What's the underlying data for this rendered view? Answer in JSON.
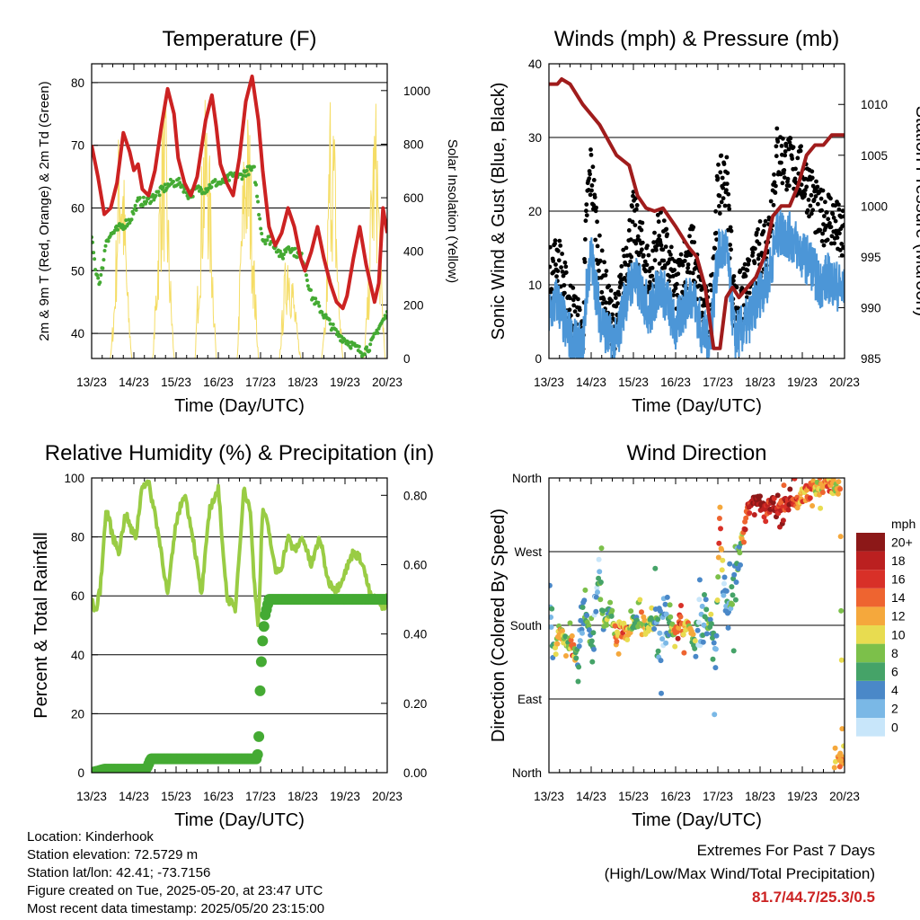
{
  "station": {
    "location": "Location: Kinderhook",
    "elevation": "Station elevation: 72.5729 m",
    "latlon": "Station lat/lon: 42.41; -73.7156",
    "created": "Figure created on Tue, 2025-05-20, at 23:47 UTC",
    "latest": "Most recent data timestamp: 2025/05/20 23:15:00"
  },
  "extremes": {
    "title": "Extremes For Past 7 Days",
    "subtitle": "(High/Low/Max Wind/Total Precipitation)",
    "values": "81.7/44.7/25.3/0.5"
  },
  "colors": {
    "temp": "#cc2222",
    "dewpoint": "#44aa33",
    "solar": "#f5dd66",
    "gust": "#000000",
    "wind": "#4c96d7",
    "pressure": "#a01c1c",
    "rh": "#99cc44",
    "precip": "#44aa33"
  },
  "chart_data": [
    {
      "type": "line",
      "title": "Temperature (F)",
      "xlabel": "Time (Day/UTC)",
      "ylabel": "2m & 9m T (Red, Orange) & 2m Td (Green)",
      "ylabel_right": "Solar Insolation (Yellow)",
      "x_ticks": [
        "13/23",
        "14/23",
        "15/23",
        "16/23",
        "17/23",
        "18/23",
        "19/23",
        "20/23"
      ],
      "xlim": [
        0,
        7
      ],
      "ylim": [
        36,
        83
      ],
      "ylim_right": [
        0,
        1100
      ],
      "y_ticks": [
        40,
        50,
        60,
        70,
        80
      ],
      "y_ticks_right": [
        0,
        200,
        400,
        600,
        800,
        1000
      ],
      "grid": "horizontal",
      "series": [
        {
          "name": "2m T",
          "axis": "left",
          "x": [
            0,
            0.15,
            0.3,
            0.45,
            0.6,
            0.75,
            0.9,
            1.0,
            1.1,
            1.2,
            1.35,
            1.5,
            1.65,
            1.8,
            1.95,
            2.05,
            2.2,
            2.35,
            2.5,
            2.7,
            2.85,
            2.95,
            3.05,
            3.2,
            3.35,
            3.5,
            3.65,
            3.8,
            3.95,
            4.05,
            4.2,
            4.35,
            4.5,
            4.65,
            4.8,
            4.95,
            5.05,
            5.2,
            5.35,
            5.5,
            5.65,
            5.8,
            5.95,
            6.05,
            6.2,
            6.35,
            6.5,
            6.6,
            6.7,
            6.8,
            6.9,
            7.0
          ],
          "values": [
            70,
            65,
            59,
            60,
            64,
            72,
            69,
            66,
            67,
            63,
            62,
            66,
            73,
            79,
            75,
            68,
            64,
            62,
            65,
            74,
            78,
            73,
            67,
            64,
            62,
            68,
            77,
            81,
            74,
            66,
            57,
            54,
            56,
            60,
            57,
            52,
            50,
            53,
            57,
            52,
            48,
            45,
            44,
            46,
            52,
            57,
            51,
            48,
            45,
            48,
            60,
            56
          ]
        },
        {
          "name": "2m Td",
          "axis": "left",
          "x": [
            0,
            0.1,
            0.2,
            0.35,
            0.5,
            0.7,
            0.9,
            1.1,
            1.3,
            1.5,
            1.7,
            1.9,
            2.1,
            2.3,
            2.5,
            2.7,
            2.9,
            3.1,
            3.3,
            3.5,
            3.7,
            3.85,
            3.95,
            4.05,
            4.2,
            4.35,
            4.5,
            4.65,
            4.8,
            5.0,
            5.2,
            5.4,
            5.6,
            5.8,
            6.0,
            6.2,
            6.4,
            6.6,
            6.8,
            7.0
          ],
          "values": [
            55,
            50,
            48,
            55,
            56,
            57,
            58,
            61,
            61,
            62,
            63,
            64,
            64,
            62,
            63,
            63,
            64,
            64,
            65,
            65,
            66,
            66,
            60,
            55,
            55,
            54,
            52,
            54,
            53,
            52,
            46,
            44,
            42,
            40,
            39,
            38,
            37,
            38,
            41,
            43
          ]
        },
        {
          "name": "Solar Insolation",
          "axis": "right",
          "x": [
            0,
            0.45,
            0.55,
            0.65,
            0.75,
            0.85,
            0.95,
            1.45,
            1.55,
            1.65,
            1.75,
            1.85,
            1.95,
            2.45,
            2.55,
            2.65,
            2.75,
            2.85,
            2.95,
            3.45,
            3.55,
            3.65,
            3.75,
            3.85,
            3.95,
            4.45,
            4.55,
            4.65,
            4.75,
            4.85,
            4.95,
            5.45,
            5.55,
            5.65,
            5.75,
            5.85,
            5.95,
            6.45,
            6.55,
            6.65,
            6.75,
            6.85,
            6.95
          ],
          "values": [
            0,
            0,
            300,
            950,
            800,
            300,
            0,
            0,
            400,
            900,
            1000,
            400,
            0,
            0,
            500,
            950,
            1000,
            500,
            0,
            0,
            600,
            1000,
            900,
            400,
            0,
            0,
            300,
            500,
            350,
            150,
            0,
            0,
            200,
            1080,
            900,
            300,
            0,
            0,
            300,
            900,
            1000,
            400,
            0
          ]
        }
      ]
    },
    {
      "type": "scatter",
      "title": "Winds (mph) & Pressure (mb)",
      "xlabel": "Time (Day/UTC)",
      "ylabel": "Sonic Wind & Gust (Blue, Black)",
      "ylabel_right": "Station Pressure (Maroon)",
      "x_ticks": [
        "13/23",
        "14/23",
        "15/23",
        "16/23",
        "17/23",
        "18/23",
        "19/23",
        "20/23"
      ],
      "xlim": [
        0,
        7
      ],
      "ylim": [
        0,
        40
      ],
      "ylim_right": [
        985,
        1014
      ],
      "y_ticks": [
        0,
        10,
        20,
        30,
        40
      ],
      "y_ticks_right": [
        985,
        990,
        995,
        1000,
        1005,
        1010
      ],
      "grid": "horizontal",
      "series": [
        {
          "name": "Gust",
          "axis": "left",
          "x": [
            0,
            0.2,
            0.4,
            0.6,
            0.8,
            0.9,
            1.0,
            1.2,
            1.4,
            1.6,
            1.8,
            2.0,
            2.2,
            2.4,
            2.6,
            2.8,
            3.0,
            3.2,
            3.4,
            3.6,
            3.8,
            4.0,
            4.2,
            4.4,
            4.6,
            4.8,
            5.0,
            5.2,
            5.4,
            5.6,
            5.8,
            6.0,
            6.2,
            6.4,
            6.6,
            6.8,
            7.0
          ],
          "values": [
            10,
            13,
            8,
            5,
            2,
            20,
            25,
            12,
            6,
            4,
            12,
            18,
            14,
            10,
            16,
            13,
            8,
            12,
            14,
            7,
            4,
            22,
            24,
            6,
            8,
            10,
            14,
            16,
            27,
            26,
            25,
            24,
            22,
            18,
            19,
            17,
            15
          ]
        },
        {
          "name": "Wind",
          "axis": "left",
          "x": [
            0,
            0.2,
            0.4,
            0.6,
            0.8,
            0.9,
            1.0,
            1.2,
            1.4,
            1.6,
            1.8,
            2.0,
            2.2,
            2.4,
            2.6,
            2.8,
            3.0,
            3.2,
            3.4,
            3.6,
            3.8,
            4.0,
            4.2,
            4.4,
            4.6,
            4.8,
            5.0,
            5.2,
            5.4,
            5.6,
            5.8,
            6.0,
            6.2,
            6.4,
            6.6,
            6.8,
            7.0
          ],
          "values": [
            6,
            8,
            4,
            2,
            1,
            10,
            14,
            6,
            3,
            2,
            8,
            11,
            9,
            6,
            10,
            8,
            4,
            7,
            9,
            4,
            2,
            14,
            15,
            3,
            4,
            6,
            9,
            11,
            17,
            17,
            16,
            14,
            13,
            10,
            11,
            10,
            9
          ]
        },
        {
          "name": "Station Pressure",
          "axis": "right",
          "x": [
            0,
            0.2,
            0.3,
            0.5,
            0.8,
            1.2,
            1.6,
            1.9,
            2.1,
            2.3,
            2.5,
            2.7,
            3.0,
            3.3,
            3.5,
            3.7,
            3.9,
            4.05,
            4.2,
            4.35,
            4.5,
            4.7,
            4.9,
            5.1,
            5.3,
            5.5,
            5.7,
            5.9,
            6.1,
            6.3,
            6.5,
            6.7,
            6.9,
            7.0
          ],
          "values": [
            1012,
            1012,
            1012.5,
            1012,
            1010,
            1008,
            1005,
            1004,
            1001,
            999.8,
            999.5,
            999.8,
            998,
            996,
            995,
            992,
            986,
            986,
            991,
            992,
            991,
            992,
            993,
            995,
            999,
            1000,
            1000,
            1002,
            1005,
            1006,
            1006,
            1007,
            1007,
            1007
          ]
        }
      ]
    },
    {
      "type": "line",
      "title": "Relative Humidity (%) & Precipitation (in)",
      "xlabel": "Time (Day/UTC)",
      "ylabel": "Percent & Total Rainfall",
      "x_ticks": [
        "13/23",
        "14/23",
        "15/23",
        "16/23",
        "17/23",
        "18/23",
        "19/23",
        "20/23"
      ],
      "xlim": [
        0,
        7
      ],
      "ylim": [
        0,
        100
      ],
      "ylim_right": [
        0,
        0.85
      ],
      "y_ticks": [
        0,
        20,
        40,
        60,
        80,
        100
      ],
      "y_ticks_right": [
        "0.00",
        "0.20",
        "0.40",
        "0.60",
        "0.80"
      ],
      "grid": "horizontal",
      "series": [
        {
          "name": "Relative Humidity",
          "axis": "left",
          "x": [
            0,
            0.1,
            0.2,
            0.35,
            0.5,
            0.65,
            0.8,
            0.95,
            1.05,
            1.2,
            1.35,
            1.5,
            1.65,
            1.8,
            2.0,
            2.2,
            2.4,
            2.6,
            2.8,
            3.0,
            3.2,
            3.4,
            3.6,
            3.75,
            3.85,
            3.95,
            4.05,
            4.2,
            4.35,
            4.5,
            4.65,
            4.8,
            5.0,
            5.2,
            5.4,
            5.6,
            5.8,
            6.0,
            6.2,
            6.4,
            6.6,
            6.8,
            6.9,
            7.0
          ],
          "values": [
            58,
            55,
            62,
            90,
            80,
            75,
            88,
            82,
            80,
            98,
            98,
            88,
            75,
            60,
            85,
            95,
            80,
            60,
            90,
            96,
            60,
            55,
            96,
            90,
            65,
            50,
            90,
            82,
            68,
            70,
            80,
            75,
            80,
            70,
            80,
            65,
            62,
            68,
            75,
            72,
            60,
            58,
            55,
            60
          ]
        },
        {
          "name": "Total Rainfall",
          "axis": "right",
          "x": [
            0,
            0.3,
            0.6,
            1.0,
            1.3,
            1.4,
            2.0,
            3.0,
            3.9,
            3.95,
            4.0,
            4.05,
            4.1,
            4.2,
            5.0,
            6.0,
            7.0
          ],
          "values": [
            0,
            0.01,
            0.01,
            0.01,
            0.01,
            0.04,
            0.04,
            0.04,
            0.04,
            0.06,
            0.28,
            0.38,
            0.45,
            0.5,
            0.5,
            0.5,
            0.5
          ]
        }
      ]
    },
    {
      "type": "scatter",
      "title": "Wind Direction",
      "xlabel": "Time (Day/UTC)",
      "ylabel": "Direction (Colored By Speed)",
      "x_ticks": [
        "13/23",
        "14/23",
        "15/23",
        "16/23",
        "17/23",
        "18/23",
        "19/23",
        "20/23"
      ],
      "xlim": [
        0,
        7
      ],
      "y_ticks": [
        "North",
        "East",
        "South",
        "West",
        "North"
      ],
      "ylim": [
        0,
        360
      ],
      "grid": "horizontal",
      "legend_title": "mph",
      "legend": [
        "0",
        "2",
        "4",
        "6",
        "8",
        "10",
        "12",
        "14",
        "16",
        "18",
        "20+"
      ],
      "legend_colors": [
        "#c8e6fa",
        "#7ab8e6",
        "#4a88c8",
        "#45a368",
        "#7cc04a",
        "#e8dc50",
        "#f5a83c",
        "#ee6430",
        "#d83028",
        "#bb2020",
        "#8c1818"
      ],
      "series": [
        {
          "name": "Direction",
          "x": [
            0.05,
            0.15,
            0.25,
            0.35,
            0.45,
            0.55,
            0.7,
            0.8,
            0.95,
            1.05,
            1.15,
            1.3,
            1.45,
            1.6,
            1.75,
            1.85,
            2.0,
            2.1,
            2.2,
            2.3,
            2.4,
            2.5,
            2.6,
            2.75,
            2.85,
            3.0,
            3.1,
            3.2,
            3.3,
            3.45,
            3.55,
            3.65,
            3.75,
            3.85,
            3.95,
            4.05,
            4.15,
            4.25,
            4.35,
            4.45,
            4.55,
            4.6,
            4.7,
            4.8,
            4.9,
            5.0,
            5.1,
            5.2,
            5.3,
            5.4,
            5.5,
            5.6,
            5.7,
            5.8,
            5.9,
            6.0,
            6.1,
            6.2,
            6.3,
            6.4,
            6.5,
            6.6,
            6.7,
            6.8,
            6.9,
            6.95
          ],
          "values": [
            180,
            150,
            175,
            160,
            165,
            150,
            140,
            220,
            170,
            160,
            250,
            180,
            200,
            165,
            175,
            170,
            185,
            180,
            190,
            175,
            185,
            180,
            170,
            190,
            180,
            175,
            185,
            170,
            180,
            155,
            190,
            175,
            185,
            180,
            140,
            320,
            210,
            185,
            205,
            250,
            280,
            290,
            320,
            330,
            335,
            330,
            320,
            325,
            330,
            320,
            325,
            330,
            320,
            335,
            330,
            340,
            340,
            345,
            350,
            345,
            350,
            355,
            350,
            345,
            350,
            15
          ],
          "speed": [
            4,
            8,
            12,
            10,
            8,
            14,
            4,
            4,
            8,
            4,
            2,
            8,
            6,
            12,
            14,
            10,
            8,
            6,
            12,
            10,
            8,
            6,
            4,
            2,
            4,
            14,
            16,
            12,
            10,
            8,
            2,
            4,
            6,
            8,
            2,
            16,
            2,
            4,
            6,
            4,
            8,
            12,
            16,
            18,
            20,
            20,
            18,
            16,
            20,
            18,
            16,
            18,
            20,
            16,
            14,
            12,
            14,
            16,
            12,
            10,
            12,
            14,
            12,
            10,
            12,
            10
          ]
        }
      ]
    }
  ]
}
